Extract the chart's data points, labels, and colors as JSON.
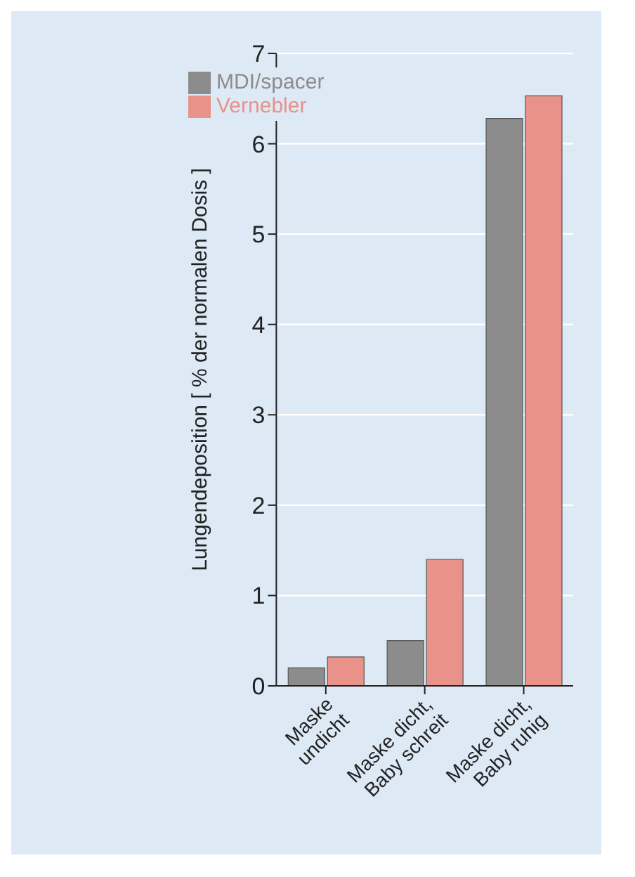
{
  "chart_data": {
    "type": "bar",
    "ylabel": "Lungendeposition [ % der normalen Dosis ]",
    "categories": [
      "Maske undicht",
      "Maske dicht, Baby schreit",
      "Maske dicht, Baby ruhig"
    ],
    "series": [
      {
        "name": "MDI/spacer",
        "color": "#8c8c8c",
        "values": [
          0.2,
          0.5,
          6.28
        ]
      },
      {
        "name": "Vernebler",
        "color": "#e8928a",
        "values": [
          0.32,
          1.4,
          6.53
        ]
      }
    ],
    "ylim": [
      0,
      7
    ],
    "yticks": [
      0,
      1,
      2,
      3,
      4,
      5,
      6,
      7
    ],
    "grid": "y",
    "legend": "top left"
  }
}
